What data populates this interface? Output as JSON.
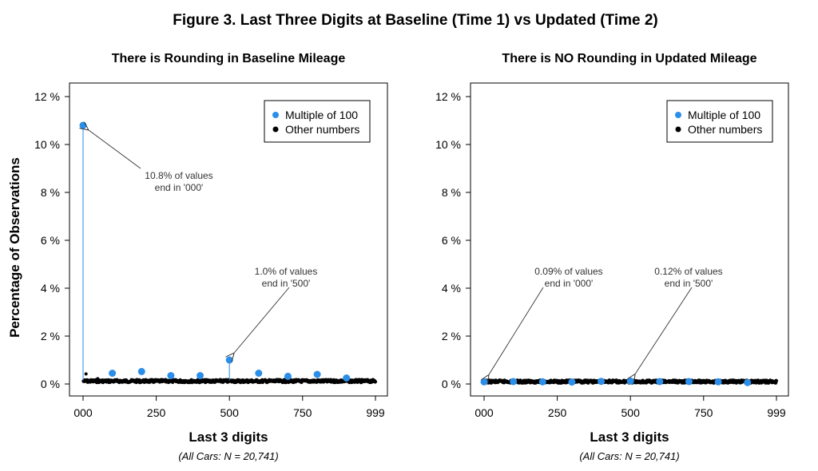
{
  "figure": {
    "title": "Figure 3. Last Three Digits at Baseline (Time 1) vs Updated (Time 2)",
    "ylabel": "Percentage of Observations"
  },
  "colors": {
    "multiple": "#2b8ee8",
    "other": "#000000"
  },
  "chart_data": [
    {
      "type": "scatter",
      "title": "There is Rounding in Baseline Mileage",
      "xlabel": "Last 3 digits",
      "note": "(All Cars: N = 20,741)",
      "ylabel": "Percentage of Observations",
      "xlim": [
        0,
        999
      ],
      "ylim": [
        0,
        12
      ],
      "x_ticks": [
        0,
        250,
        500,
        750,
        999
      ],
      "x_tick_labels": [
        "000",
        "250",
        "500",
        "750",
        "999"
      ],
      "y_ticks": [
        0,
        2,
        4,
        6,
        8,
        10,
        12
      ],
      "y_tick_labels": [
        "0 %",
        "2 %",
        "4 %",
        "6 %",
        "8 %",
        "10 %",
        "12 %"
      ],
      "legend": {
        "position": "top-right",
        "entries": [
          "Multiple of 100",
          "Other numbers"
        ]
      },
      "series": [
        {
          "name": "Multiple of 100",
          "x": [
            0,
            100,
            200,
            300,
            400,
            500,
            600,
            700,
            800,
            900
          ],
          "y": [
            10.8,
            0.45,
            0.52,
            0.35,
            0.35,
            1.0,
            0.45,
            0.32,
            0.4,
            0.25
          ]
        },
        {
          "name": "Other numbers",
          "baseline_y": 0.12,
          "spikes": [
            [
              10,
              0.42
            ],
            [
              50,
              0.22
            ]
          ]
        }
      ],
      "annotations": [
        {
          "lines": [
            "10.8% of values",
            "end in '000'"
          ],
          "x": 0,
          "y": 10.8
        },
        {
          "lines": [
            "1.0% of values",
            "end in '500'"
          ],
          "x": 500,
          "y": 1.0
        }
      ]
    },
    {
      "type": "scatter",
      "title": "There is NO Rounding in Updated Mileage",
      "xlabel": "Last 3 digits",
      "note": "(All Cars: N = 20,741)",
      "xlim": [
        0,
        999
      ],
      "ylim": [
        0,
        12
      ],
      "x_ticks": [
        0,
        250,
        500,
        750,
        999
      ],
      "x_tick_labels": [
        "000",
        "250",
        "500",
        "750",
        "999"
      ],
      "y_ticks": [
        0,
        2,
        4,
        6,
        8,
        10,
        12
      ],
      "y_tick_labels": [
        "0 %",
        "2 %",
        "4 %",
        "6 %",
        "8 %",
        "10 %",
        "12 %"
      ],
      "legend": {
        "position": "top-right",
        "entries": [
          "Multiple of 100",
          "Other numbers"
        ]
      },
      "series": [
        {
          "name": "Multiple of 100",
          "x": [
            0,
            100,
            200,
            300,
            400,
            500,
            600,
            700,
            800,
            900
          ],
          "y": [
            0.09,
            0.1,
            0.09,
            0.08,
            0.11,
            0.12,
            0.1,
            0.1,
            0.09,
            0.06
          ]
        },
        {
          "name": "Other numbers",
          "baseline_y": 0.1,
          "spikes": []
        }
      ],
      "annotations": [
        {
          "lines": [
            "0.09% of values",
            "end in '000'"
          ],
          "x": 0,
          "y": 0.09
        },
        {
          "lines": [
            "0.12% of values",
            "end in '500'"
          ],
          "x": 500,
          "y": 0.12
        }
      ]
    }
  ]
}
